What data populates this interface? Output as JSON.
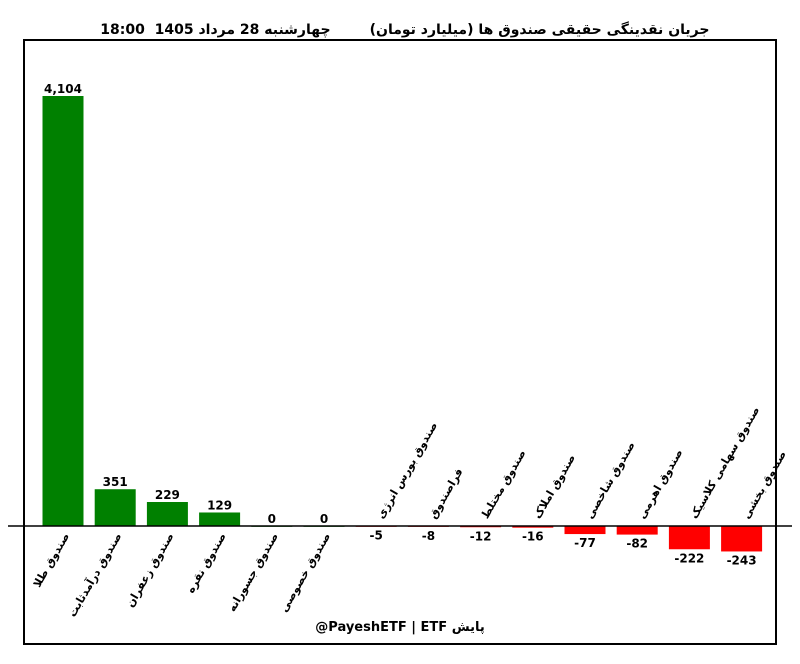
{
  "chart_data": {
    "type": "bar",
    "title": "چهارشنبه 28 مرداد 1405  18:00",
    "subtitle": "جریان نقدینگی حقیقی صندوق ها (میلیارد تومان)",
    "categories": [
      "صندوق طلا",
      "صندوق درآمدثابت",
      "صندوق زعفران",
      "صندوق نقره",
      "صندوق جسورانه",
      "صندوق خصوصی",
      "صندوق بورس انرژی",
      "فراصندوق",
      "صندوق مختلط",
      "صندوق املاک",
      "صندوق شاخصی",
      "صندوق اهرمی",
      "صندوق سهامی کلاسیک",
      "صندوق بخشی"
    ],
    "values": [
      4104,
      351,
      229,
      129,
      0,
      0,
      -5,
      -8,
      -12,
      -16,
      -77,
      -82,
      -222,
      -243
    ],
    "value_labels": [
      "4,104",
      "351",
      "229",
      "129",
      "0",
      "0",
      "-5",
      "-8",
      "-12",
      "-16",
      "-77",
      "-82",
      "-222",
      "-243"
    ],
    "ylim": [
      -380,
      4560
    ],
    "colors": {
      "positive": "#008000",
      "negative": "#ff0000",
      "frame": "#000000"
    },
    "grid": false,
    "legend": "none"
  },
  "footer": {
    "credit": "@PayeshETF  |  ETF پایش"
  }
}
